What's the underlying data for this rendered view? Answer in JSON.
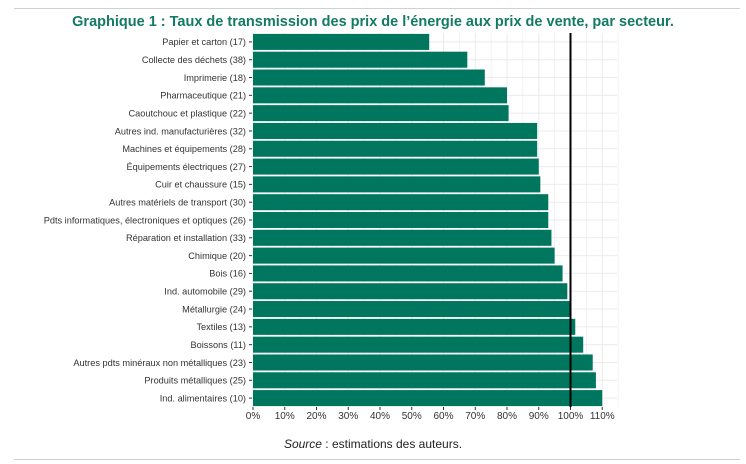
{
  "figure": {
    "title": "Graphique 1 : Taux de transmission des prix de l’énergie aux prix de vente, par secteur.",
    "source_label": "Source",
    "source_text": " : estimations des auteurs."
  },
  "colors": {
    "bar": "#00765f",
    "title": "#137a64",
    "reference_line": "#000000",
    "grid": "#ebebeb"
  },
  "chart_data": {
    "type": "bar",
    "orientation": "horizontal",
    "title": "Graphique 1 : Taux de transmission des prix de l’énergie aux prix de vente, par secteur.",
    "xlabel": "",
    "ylabel": "",
    "xlim": [
      0,
      115
    ],
    "grid": true,
    "reference_line": 100,
    "x_ticks": [
      "0%",
      "10%",
      "20%",
      "30%",
      "40%",
      "50%",
      "60%",
      "70%",
      "80%",
      "90%",
      "100%",
      "110%"
    ],
    "x_tick_values": [
      0,
      10,
      20,
      30,
      40,
      50,
      60,
      70,
      80,
      90,
      100,
      110
    ],
    "categories": [
      "Papier et carton (17)",
      "Collecte des déchets (38)",
      "Imprimerie (18)",
      "Pharmaceutique (21)",
      "Caoutchouc et plastique (22)",
      "Autres ind. manufacturières (32)",
      "Machines et équipements (28)",
      "Équipements électriques (27)",
      "Cuir et chaussure (15)",
      "Autres matériels de transport (30)",
      "Pdts informatiques, électroniques et optiques (26)",
      "Réparation et installation (33)",
      "Chimique (20)",
      "Bois (16)",
      "Ind. automobile (29)",
      "Métallurgie (24)",
      "Textiles (13)",
      "Boissons (11)",
      "Autres pdts minéraux non métalliques (23)",
      "Produits métalliques (25)",
      "Ind. alimentaires (10)"
    ],
    "values": [
      55.5,
      67.5,
      73,
      80,
      80.5,
      89.5,
      89.5,
      90,
      90.5,
      93,
      93,
      94,
      95,
      97.5,
      99,
      100,
      101.5,
      104,
      107,
      108,
      110
    ]
  }
}
